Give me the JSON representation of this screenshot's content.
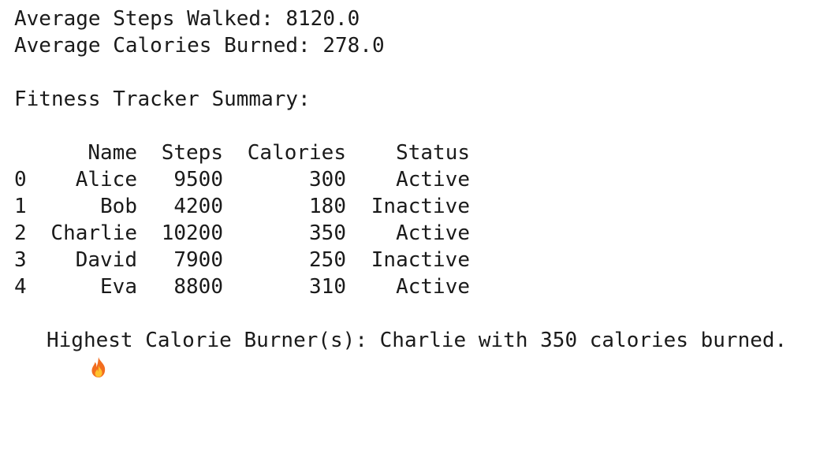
{
  "summary": {
    "avg_steps_label": "Average Steps Walked: 8120.0",
    "avg_calories_label": "Average Calories Burned: 278.0",
    "title": "Fitness Tracker Summary:"
  },
  "table": {
    "headers": {
      "name": "Name",
      "steps": "Steps",
      "calories": "Calories",
      "status": "Status"
    },
    "rows": [
      {
        "idx": "0",
        "name": "Alice",
        "steps": "9500",
        "calories": "300",
        "status": "Active"
      },
      {
        "idx": "1",
        "name": "Bob",
        "steps": "4200",
        "calories": "180",
        "status": "Inactive"
      },
      {
        "idx": "2",
        "name": "Charlie",
        "steps": "10200",
        "calories": "350",
        "status": "Active"
      },
      {
        "idx": "3",
        "name": "David",
        "steps": "7900",
        "calories": "250",
        "status": "Inactive"
      },
      {
        "idx": "4",
        "name": "Eva",
        "steps": "8800",
        "calories": "310",
        "status": "Active"
      }
    ]
  },
  "highest": {
    "icon": "fire-icon",
    "text": "Highest Calorie Burner(s): Charlie with 350 calories burned."
  }
}
